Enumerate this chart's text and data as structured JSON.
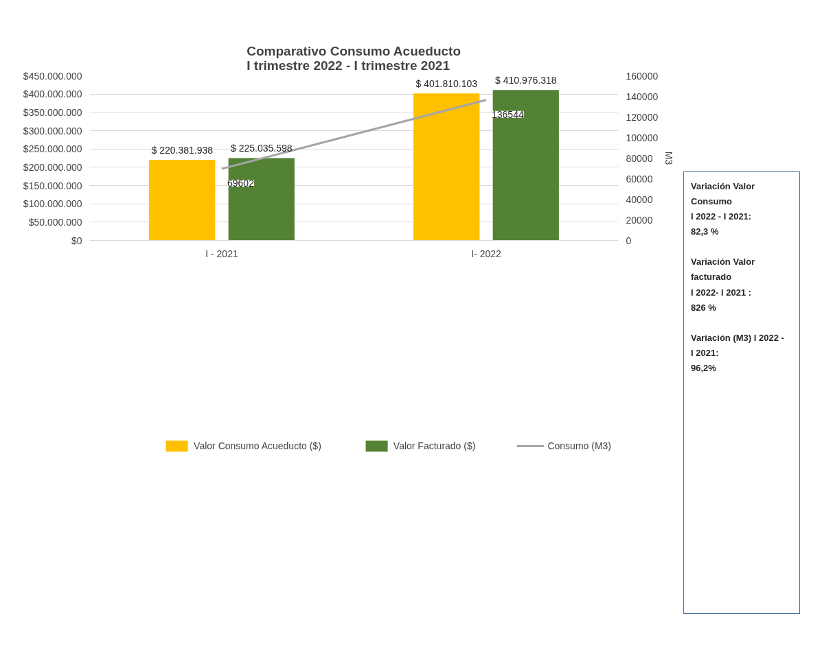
{
  "chart_data": {
    "type": "bar",
    "title": "Comparativo Consumo Acueducto\nI trimestre 2022 - I trimestre 2021",
    "categories": [
      "I - 2021",
      "I- 2022"
    ],
    "series": [
      {
        "name": "Valor Consumo Acueducto ($)",
        "color": "#ffc000",
        "values": [
          220381938,
          401810103
        ],
        "value_labels": [
          "$ 220.381.938",
          "$ 401.810.103"
        ]
      },
      {
        "name": "Valor Facturado ($)",
        "color": "#548235",
        "values": [
          225035598,
          410976318
        ],
        "value_labels": [
          "$ 225.035.598",
          "$ 410.976.318"
        ]
      },
      {
        "name": "Consumo (M3)",
        "type": "line",
        "axis": "y2",
        "color": "#a5a5a5",
        "values": [
          69602,
          136544
        ],
        "value_labels": [
          "69602",
          "136544"
        ]
      }
    ],
    "ylim": [
      0,
      450000000
    ],
    "yticks": [
      {
        "value": 0,
        "label": "$0"
      },
      {
        "value": 50000000,
        "label": "$50.000.000"
      },
      {
        "value": 100000000,
        "label": "$100.000.000"
      },
      {
        "value": 150000000,
        "label": "$150.000.000"
      },
      {
        "value": 200000000,
        "label": "$200.000.000"
      },
      {
        "value": 250000000,
        "label": "$250.000.000"
      },
      {
        "value": 300000000,
        "label": "$300.000.000"
      },
      {
        "value": 350000000,
        "label": "$350.000.000"
      },
      {
        "value": 400000000,
        "label": "$400.000.000"
      },
      {
        "value": 450000000,
        "label": "$450.000.000"
      }
    ],
    "y2lim": [
      0,
      160000
    ],
    "y2ticks": [
      0,
      20000,
      40000,
      60000,
      80000,
      100000,
      120000,
      140000,
      160000
    ],
    "y2label": "M3",
    "annotations": [
      "Variación Valor\nConsumo\nI 2022 - I 2021:\n 82,3 %",
      "Variación Valor\nfacturado\nI 2022- I 2021 :\n 826 %",
      "Variación (M3) I 2022 -\nI 2021:\n96,2%"
    ],
    "grid": "y",
    "legend": "bottom",
    "marker": "none",
    "line_style": "solid"
  }
}
